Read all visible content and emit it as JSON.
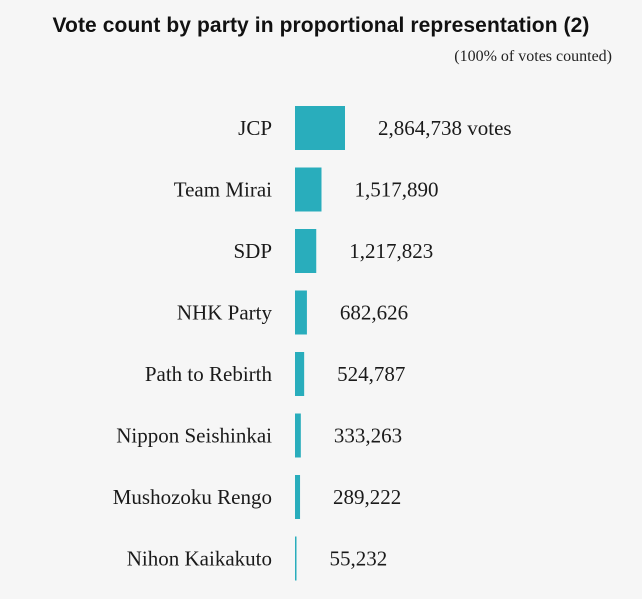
{
  "chart_data": {
    "type": "bar",
    "orientation": "horizontal",
    "title": "Vote count by party in proportional representation (2)",
    "subtitle": "(100% of votes counted)",
    "categories": [
      "JCP",
      "Team Mirai",
      "SDP",
      "NHK Party",
      "Path to Rebirth",
      "Nippon Seishinkai",
      "Mushozoku Rengo",
      "Nihon Kaikakuto"
    ],
    "values": [
      2864738,
      1517890,
      1217823,
      682626,
      524787,
      333263,
      289222,
      55232
    ],
    "value_labels": [
      "2,864,738 votes",
      "1,517,890",
      "1,217,823",
      "682,626",
      "524,787",
      "333,263",
      "289,222",
      "55,232"
    ],
    "bar_color": "#29adbc",
    "xlabel": "",
    "ylabel": "",
    "grid": false,
    "legend": "none"
  }
}
